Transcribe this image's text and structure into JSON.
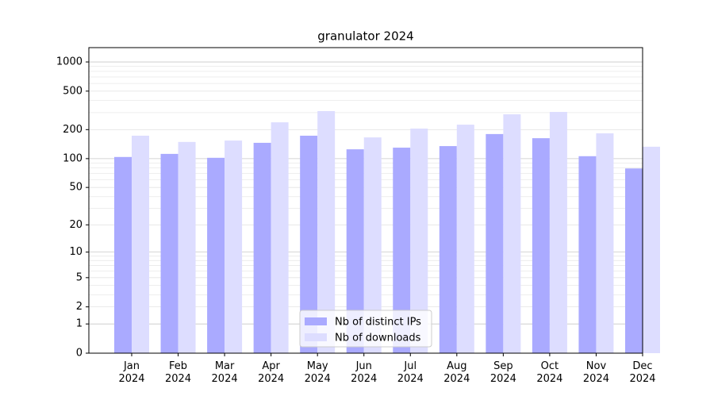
{
  "chart_data": {
    "type": "bar",
    "title": "granulator 2024",
    "categories": [
      "Jan\n2024",
      "Feb\n2024",
      "Mar\n2024",
      "Apr\n2024",
      "May\n2024",
      "Jun\n2024",
      "Jul\n2024",
      "Aug\n2024",
      "Sep\n2024",
      "Oct\n2024",
      "Nov\n2024",
      "Dec\n2024"
    ],
    "series": [
      {
        "name": "Nb of distinct IPs",
        "color": "#aaaaff",
        "values": [
          104,
          112,
          102,
          146,
          173,
          125,
          130,
          135,
          180,
          163,
          106,
          79
        ]
      },
      {
        "name": "Nb of downloads",
        "color": "#ddddff",
        "values": [
          173,
          149,
          154,
          238,
          311,
          166,
          205,
          225,
          288,
          305,
          183,
          133
        ]
      }
    ],
    "yscale": "log1p",
    "ylim": [
      0,
      1405
    ],
    "yticks": [
      0,
      1,
      2,
      5,
      10,
      20,
      50,
      100,
      200,
      500,
      1000
    ],
    "minor_yticks": [
      3,
      4,
      6,
      7,
      8,
      9,
      30,
      40,
      60,
      70,
      80,
      90,
      300,
      400,
      600,
      700,
      800,
      900
    ],
    "grid": true,
    "legend": "lower center"
  }
}
